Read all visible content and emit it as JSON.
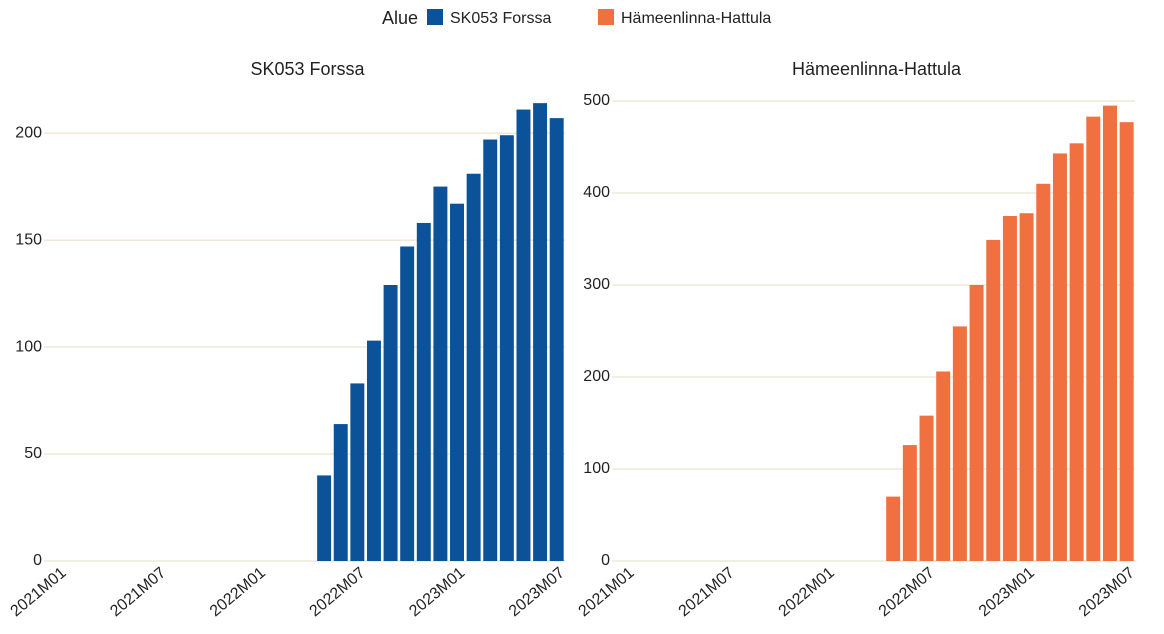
{
  "chart_data": [
    {
      "type": "bar",
      "title": "SK053 Forssa",
      "legend_title": "Alue",
      "categories": [
        "2021M01",
        null,
        null,
        null,
        null,
        null,
        "2021M07",
        null,
        null,
        null,
        null,
        null,
        "2022M01",
        null,
        null,
        null,
        null,
        null,
        "2022M07",
        null,
        null,
        null,
        null,
        null,
        "2023M01",
        null,
        null,
        null,
        null,
        null,
        "2023M07"
      ],
      "series": [
        {
          "name": "SK053 Forssa",
          "color": "#0b5299",
          "values": [
            0,
            0,
            0,
            0,
            0,
            0,
            0,
            0,
            0,
            0,
            0,
            0,
            0,
            0,
            0,
            0,
            40,
            64,
            83,
            103,
            129,
            147,
            158,
            175,
            167,
            181,
            197,
            199,
            211,
            214,
            207
          ]
        }
      ],
      "ylim": [
        0,
        215
      ],
      "yticks": [
        0,
        50,
        100,
        150,
        200
      ],
      "grid": true
    },
    {
      "type": "bar",
      "title": "Hämeenlinna-Hattula",
      "categories": [
        "2021M01",
        null,
        null,
        null,
        null,
        null,
        "2021M07",
        null,
        null,
        null,
        null,
        null,
        "2022M01",
        null,
        null,
        null,
        null,
        null,
        "2022M07",
        null,
        null,
        null,
        null,
        null,
        "2023M01",
        null,
        null,
        null,
        null,
        null,
        "2023M07"
      ],
      "series": [
        {
          "name": "Hämeenlinna-Hattula",
          "color": "#f07040",
          "values": [
            0,
            0,
            0,
            0,
            0,
            0,
            0,
            0,
            0,
            0,
            0,
            0,
            0,
            0,
            0,
            0,
            70,
            126,
            158,
            206,
            255,
            300,
            349,
            375,
            378,
            410,
            443,
            454,
            483,
            495,
            477
          ]
        }
      ],
      "ylim": [
        0,
        500
      ],
      "yticks": [
        0,
        100,
        200,
        300,
        400,
        500
      ],
      "grid": true
    }
  ]
}
